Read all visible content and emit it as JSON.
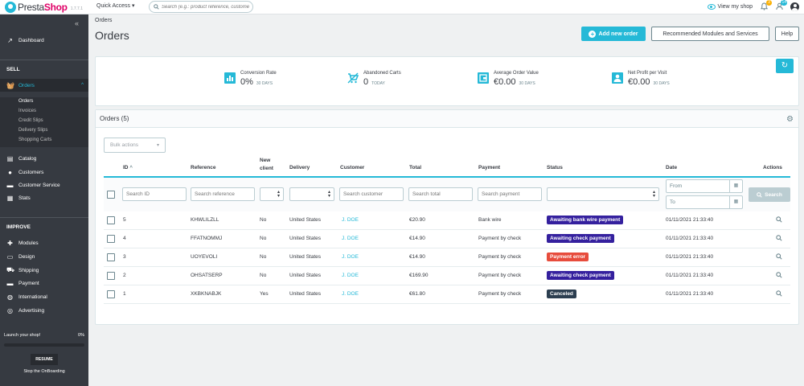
{
  "topbar": {
    "logo_prefix": "Presta",
    "logo_suffix": "Shop",
    "version": "1.7.7.1",
    "quick_access": "Quick Access ▾",
    "search_placeholder": "Search (e.g.: product reference, custome",
    "view_shop": "View my shop",
    "notif_orders": "3",
    "notif_customers": "14",
    "colors": {
      "accent": "#25b9d7",
      "sidebar": "#363a41"
    }
  },
  "sidebar": {
    "collapse": "«",
    "dashboard": "Dashboard",
    "sell_title": "SELL",
    "orders": "Orders",
    "orders_sub": [
      "Orders",
      "Invoices",
      "Credit Slips",
      "Delivery Slips",
      "Shopping Carts"
    ],
    "catalog": "Catalog",
    "customers": "Customers",
    "customer_service": "Customer Service",
    "stats": "Stats",
    "improve_title": "IMPROVE",
    "modules": "Modules",
    "design": "Design",
    "shipping": "Shipping",
    "payment": "Payment",
    "international": "International",
    "advertising": "Advertising",
    "launch_label": "Launch your shop!",
    "launch_pct": "0%",
    "launch_progress": 0,
    "resume": "RESUME",
    "stop": "Stop the OnBoarding"
  },
  "header": {
    "breadcrumb": "Orders",
    "title": "Orders",
    "add_order": "Add new order",
    "recommended": "Recommended Modules and Services",
    "help": "Help"
  },
  "kpis": [
    {
      "label": "Conversion Rate",
      "value": "0%",
      "period": "30 DAYS",
      "icon": "chart-icon"
    },
    {
      "label": "Abandoned Carts",
      "value": "0",
      "period": "TODAY",
      "icon": "cart-icon"
    },
    {
      "label": "Average Order Value",
      "value": "€0.00",
      "period": "30 DAYS",
      "icon": "wallet-icon"
    },
    {
      "label": "Net Profit per Visit",
      "value": "€0.00",
      "period": "30 DAYS",
      "icon": "person-icon"
    }
  ],
  "orders": {
    "title": "Orders (5)",
    "bulk_actions": "Bulk actions",
    "columns": {
      "id": "ID",
      "reference": "Reference",
      "new_client_1": "New",
      "new_client_2": "client",
      "delivery": "Delivery",
      "customer": "Customer",
      "total": "Total",
      "payment": "Payment",
      "status": "Status",
      "date": "Date",
      "actions": "Actions"
    },
    "filters": {
      "id": "Search ID",
      "reference": "Search reference",
      "customer": "Search customer",
      "total": "Search total",
      "payment": "Search payment",
      "from": "From",
      "to": "To",
      "search": "Search"
    },
    "rows": [
      {
        "id": "5",
        "reference": "KHWLILZLL",
        "new_client": "No",
        "delivery": "United States",
        "customer": "J. DOE",
        "total": "€20.90",
        "payment": "Bank wire",
        "status": "Awaiting bank wire payment",
        "status_color": "#34209e",
        "date": "01/11/2021 21:33:40"
      },
      {
        "id": "4",
        "reference": "FFATNOMMJ",
        "new_client": "No",
        "delivery": "United States",
        "customer": "J. DOE",
        "total": "€14.90",
        "payment": "Payment by check",
        "status": "Awaiting check payment",
        "status_color": "#34209e",
        "date": "01/11/2021 21:33:40"
      },
      {
        "id": "3",
        "reference": "UOYEVOLI",
        "new_client": "No",
        "delivery": "United States",
        "customer": "J. DOE",
        "total": "€14.90",
        "payment": "Payment by check",
        "status": "Payment error",
        "status_color": "#e74c3c",
        "date": "01/11/2021 21:33:40"
      },
      {
        "id": "2",
        "reference": "OHSATSERP",
        "new_client": "No",
        "delivery": "United States",
        "customer": "J. DOE",
        "total": "€169.90",
        "payment": "Payment by check",
        "status": "Awaiting check payment",
        "status_color": "#34209e",
        "date": "01/11/2021 21:33:40"
      },
      {
        "id": "1",
        "reference": "XKBKNABJK",
        "new_client": "Yes",
        "delivery": "United States",
        "customer": "J. DOE",
        "total": "€61.80",
        "payment": "Payment by check",
        "status": "Canceled",
        "status_color": "#2c3e50",
        "date": "01/11/2021 21:33:40"
      }
    ]
  }
}
